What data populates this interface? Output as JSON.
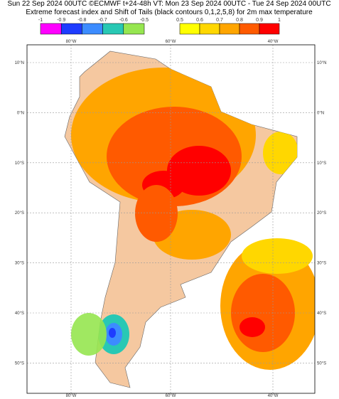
{
  "header": {
    "line1": "Sun 22 Sep 2024 00UTC ©ECMWF t+24-48h  VT: Mon 23 Sep 2024 00UTC - Tue 24 Sep 2024 00UTC",
    "line2": "Extreme forecast index and Shift of Tails (black contours 0,1,2,5,8) for 2m max temperature"
  },
  "colorbar_left": {
    "labels": [
      "-1",
      "-0.9",
      "-0.8",
      "-0.7",
      "-0.6",
      "-0.5"
    ],
    "colors": [
      "#ff00ff",
      "#1e3cff",
      "#3c8cff",
      "#28c8b4",
      "#96e650"
    ]
  },
  "colorbar_right": {
    "labels": [
      "0.5",
      "0.6",
      "0.7",
      "0.8",
      "0.9",
      "1"
    ],
    "colors": [
      "#ffff00",
      "#ffd700",
      "#ffa500",
      "#ff5a00",
      "#ff0000"
    ]
  },
  "map": {
    "lon_labels": [
      "80°W",
      "60°W",
      "40°W"
    ],
    "lat_labels": [
      "10°N",
      "0°N",
      "10°S",
      "20°S",
      "30°S",
      "40°S",
      "50°S"
    ]
  }
}
